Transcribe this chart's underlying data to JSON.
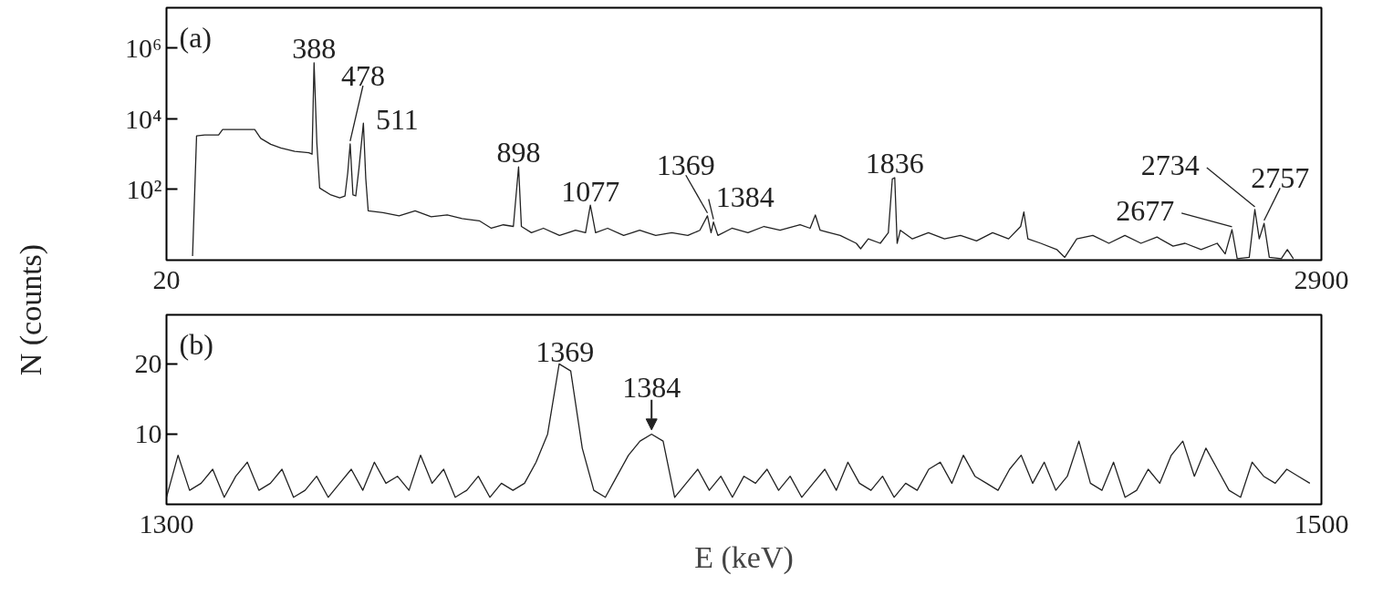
{
  "chart_data": [
    {
      "type": "line",
      "ylabel": "N (counts)",
      "color": "#222222",
      "log": true,
      "grid": false,
      "x": [
        85,
        95,
        115,
        150,
        160,
        240,
        255,
        280,
        305,
        340,
        375,
        383,
        388,
        395,
        402,
        430,
        452,
        465,
        472,
        478,
        485,
        492,
        500,
        511,
        517,
        523,
        560,
        600,
        640,
        680,
        720,
        757,
        800,
        830,
        860,
        885,
        898,
        905,
        930,
        960,
        1000,
        1040,
        1065,
        1077,
        1090,
        1120,
        1160,
        1200,
        1240,
        1280,
        1320,
        1350,
        1369,
        1378,
        1384,
        1395,
        1430,
        1470,
        1510,
        1550,
        1600,
        1625,
        1638,
        1650,
        1700,
        1740,
        1751,
        1770,
        1800,
        1820,
        1830,
        1836,
        1842,
        1850,
        1880,
        1920,
        1960,
        2000,
        2040,
        2080,
        2120,
        2150,
        2158,
        2168,
        2200,
        2240,
        2260,
        2290,
        2330,
        2370,
        2410,
        2450,
        2490,
        2530,
        2560,
        2600,
        2640,
        2660,
        2677,
        2690,
        2720,
        2734,
        2745,
        2757,
        2770,
        2800,
        2815,
        2830
      ],
      "values": [
        1.3,
        3300,
        3500,
        3500,
        5000,
        5000,
        2800,
        1900,
        1500,
        1200,
        1100,
        1000,
        390000,
        2000,
        110,
        70,
        58,
        65,
        300,
        1950,
        70,
        66,
        400,
        7600,
        200,
        25,
        22,
        18,
        25,
        17,
        19,
        15,
        13,
        8,
        10,
        9,
        440,
        9,
        6,
        8,
        5,
        7,
        6,
        36,
        6,
        8,
        5,
        7,
        5,
        6,
        5,
        7,
        18,
        6,
        12,
        5,
        8,
        6,
        9,
        7,
        10,
        8,
        19,
        7,
        5,
        3,
        2.1,
        4,
        3,
        6,
        200,
        216,
        3,
        7,
        4,
        6,
        4,
        5,
        3.5,
        6,
        4,
        9,
        23,
        4,
        3,
        2,
        1.2,
        4,
        5,
        3,
        5,
        3,
        4.5,
        2.5,
        3,
        2,
        3,
        1.5,
        7.3,
        1.1,
        1.2,
        27,
        4,
        11,
        1.2,
        1.1,
        2,
        1.1
      ],
      "xlim": [
        20,
        2900
      ],
      "xticks": [
        20,
        2900
      ],
      "ylim": [
        1,
        14000000
      ],
      "yticks": [
        {
          "value": 1000000,
          "label": "10⁶"
        },
        {
          "value": 10000,
          "label": "10⁴"
        },
        {
          "value": 100,
          "label": "10²"
        }
      ],
      "annotations": [
        "(a)",
        {
          "text": "388",
          "x": 388,
          "y": 390000
        },
        {
          "text": "478",
          "x": 478,
          "y": 1950
        },
        {
          "text": "511",
          "x": 511,
          "y": 7600
        },
        {
          "text": "898",
          "x": 898,
          "y": 440
        },
        {
          "text": "1077",
          "x": 1077,
          "y": 36
        },
        {
          "text": "1369",
          "x": 1369,
          "y": 18
        },
        {
          "text": "1384",
          "x": 1384,
          "y": 12
        },
        {
          "text": "1836",
          "x": 1836,
          "y": 216
        },
        {
          "text": "2677",
          "x": 2677,
          "y": 7.3
        },
        {
          "text": "2734",
          "x": 2734,
          "y": 27
        },
        {
          "text": "2757",
          "x": 2757,
          "y": 11
        }
      ]
    },
    {
      "type": "line",
      "xlabel": "E (keV)",
      "color": "#222222",
      "grid": false,
      "x": [
        1300,
        1302,
        1304,
        1306,
        1308,
        1310,
        1312,
        1314,
        1316,
        1318,
        1320,
        1322,
        1324,
        1326,
        1328,
        1330,
        1332,
        1334,
        1336,
        1338,
        1340,
        1342,
        1344,
        1346,
        1348,
        1350,
        1352,
        1354,
        1356,
        1358,
        1360,
        1362,
        1364,
        1366,
        1368,
        1370,
        1372,
        1374,
        1376,
        1378,
        1380,
        1382,
        1384,
        1386,
        1388,
        1390,
        1392,
        1394,
        1396,
        1398,
        1400,
        1402,
        1404,
        1406,
        1408,
        1410,
        1412,
        1414,
        1416,
        1418,
        1420,
        1422,
        1424,
        1426,
        1428,
        1430,
        1432,
        1434,
        1436,
        1438,
        1440,
        1442,
        1444,
        1446,
        1448,
        1450,
        1452,
        1454,
        1456,
        1458,
        1460,
        1462,
        1464,
        1466,
        1468,
        1470,
        1472,
        1474,
        1476,
        1478,
        1480,
        1482,
        1484,
        1486,
        1488,
        1490,
        1492,
        1494,
        1496,
        1498
      ],
      "values": [
        1,
        7,
        2,
        3,
        5,
        1,
        4,
        6,
        2,
        3,
        5,
        1,
        2,
        4,
        1,
        3,
        5,
        2,
        6,
        3,
        4,
        2,
        7,
        3,
        5,
        1,
        2,
        4,
        1,
        3,
        2,
        3,
        6,
        10,
        20,
        19,
        8,
        2,
        1,
        4,
        7,
        9,
        10,
        9,
        1,
        3,
        5,
        2,
        4,
        1,
        4,
        3,
        5,
        2,
        4,
        1,
        3,
        5,
        2,
        6,
        3,
        2,
        4,
        1,
        3,
        2,
        5,
        6,
        3,
        7,
        4,
        3,
        2,
        5,
        7,
        3,
        6,
        2,
        4,
        9,
        3,
        2,
        6,
        1,
        2,
        5,
        3,
        7,
        9,
        4,
        8,
        5,
        2,
        1,
        6,
        4,
        3,
        5,
        4,
        3
      ],
      "xlim": [
        1300,
        1500
      ],
      "xticks": [
        1300,
        1500
      ],
      "ylim": [
        0,
        27
      ],
      "yticks": [
        10,
        20
      ],
      "annotations": [
        "(b)",
        {
          "text": "1369",
          "x": 1369,
          "y": 20
        },
        {
          "text": "1384",
          "x": 1384,
          "y": 10
        }
      ]
    }
  ]
}
